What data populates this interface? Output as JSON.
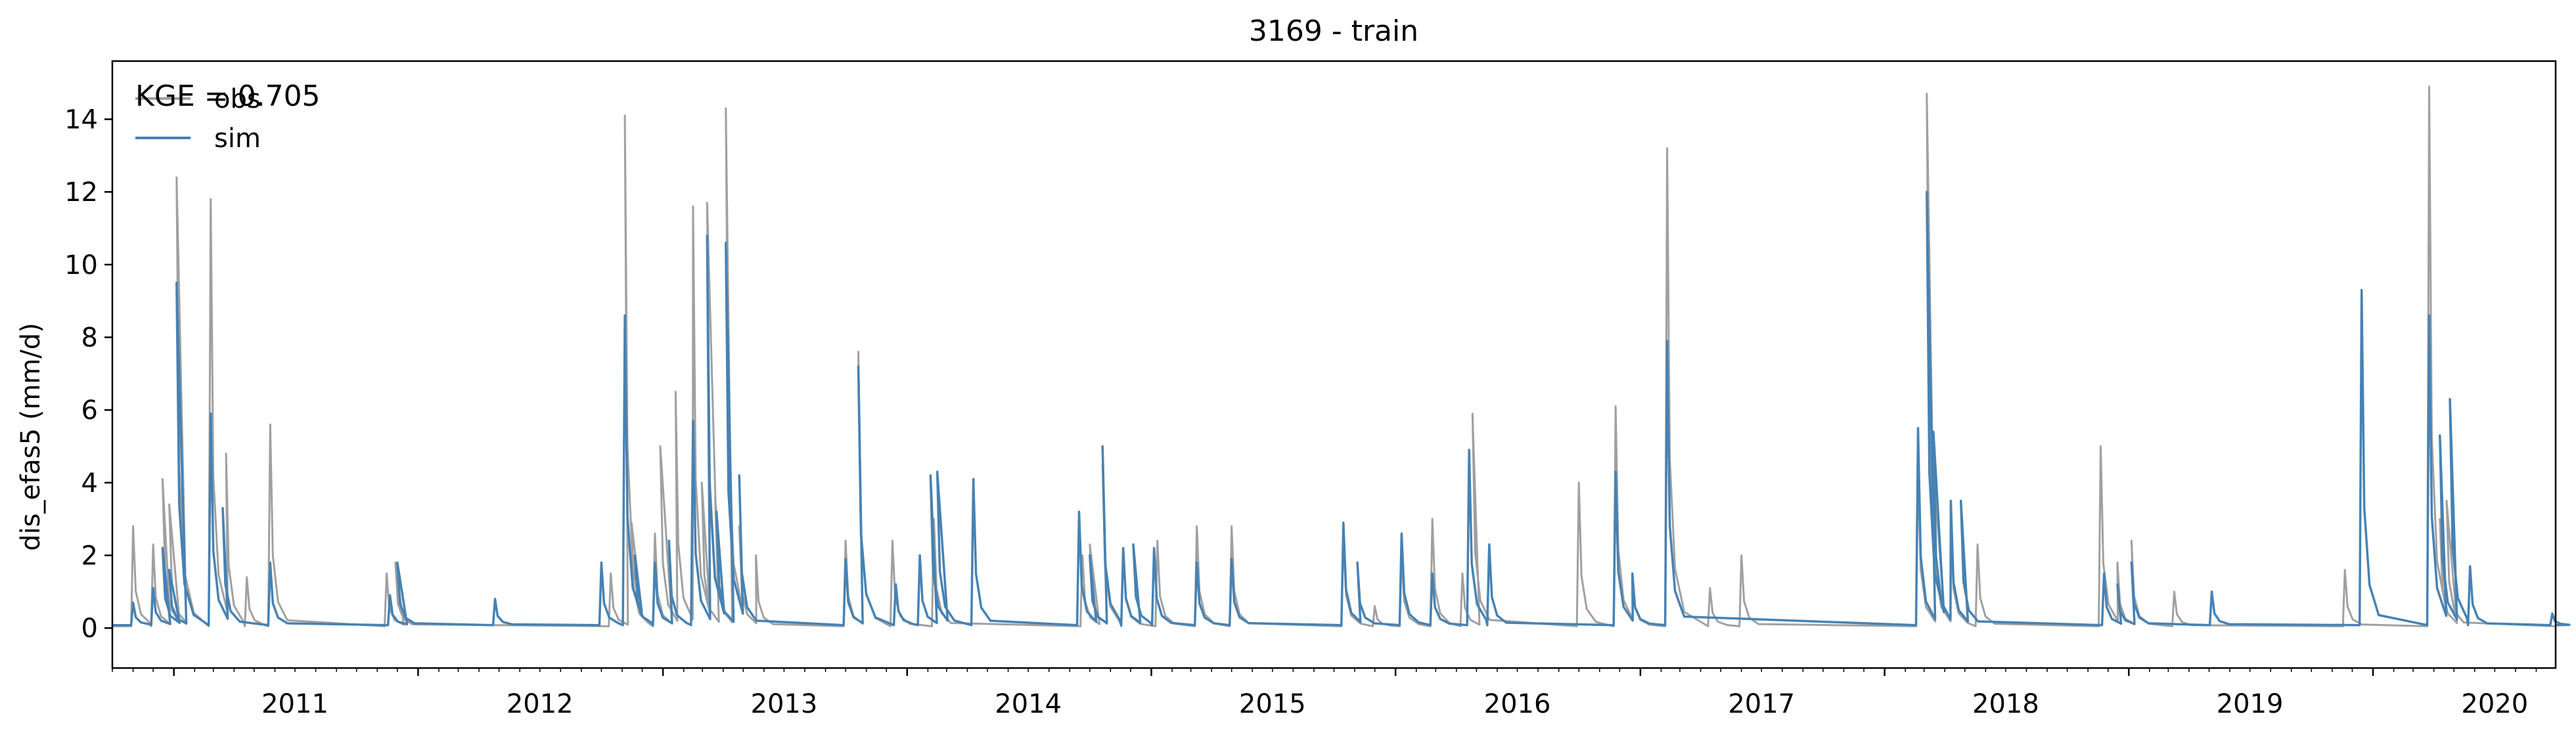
{
  "chart_data": {
    "type": "line",
    "title": "3169 - train",
    "xlabel": "",
    "ylabel": "dis_efas5 (mm/d)",
    "annotation": "KGE = 0.705",
    "xlim": [
      "2010-10-01",
      "2020-09-30"
    ],
    "ylim": [
      -1.1,
      15.6
    ],
    "x_ticks": [
      "2011",
      "2012",
      "2013",
      "2014",
      "2015",
      "2016",
      "2017",
      "2018",
      "2019",
      "2020"
    ],
    "y_ticks": [
      0,
      2,
      4,
      6,
      8,
      10,
      12,
      14
    ],
    "legend": "top-left",
    "grid": false,
    "series": [
      {
        "name": "obs",
        "color": "#a0a0a0",
        "baseline": 0.05,
        "peaks": [
          [
            "2010-11-01",
            2.8
          ],
          [
            "2010-12-01",
            2.3
          ],
          [
            "2010-12-15",
            4.1
          ],
          [
            "2010-12-25",
            3.4
          ],
          [
            "2011-01-05",
            12.4
          ],
          [
            "2011-02-25",
            11.8
          ],
          [
            "2011-03-20",
            4.8
          ],
          [
            "2011-04-20",
            1.4
          ],
          [
            "2011-05-25",
            5.6
          ],
          [
            "2011-11-15",
            1.5
          ],
          [
            "2011-11-28",
            1.8
          ],
          [
            "2012-10-15",
            1.5
          ],
          [
            "2012-11-05",
            14.1
          ],
          [
            "2012-11-15",
            2.9
          ],
          [
            "2012-12-20",
            2.6
          ],
          [
            "2012-12-28",
            5.0
          ],
          [
            "2013-01-20",
            6.5
          ],
          [
            "2013-02-15",
            11.6
          ],
          [
            "2013-02-28",
            4.0
          ],
          [
            "2013-03-08",
            11.7
          ],
          [
            "2013-03-20",
            3.6
          ],
          [
            "2013-04-05",
            14.3
          ],
          [
            "2013-04-25",
            2.8
          ],
          [
            "2013-05-20",
            2.0
          ],
          [
            "2013-10-01",
            2.4
          ],
          [
            "2013-10-20",
            7.6
          ],
          [
            "2013-12-10",
            2.4
          ],
          [
            "2014-02-10",
            3.0
          ],
          [
            "2014-09-20",
            2.0
          ],
          [
            "2014-10-01",
            2.3
          ],
          [
            "2014-10-20",
            4.5
          ],
          [
            "2014-11-20",
            2.2
          ],
          [
            "2015-01-10",
            2.4
          ],
          [
            "2015-03-10",
            2.8
          ],
          [
            "2015-05-01",
            2.8
          ],
          [
            "2015-10-15",
            2.5
          ],
          [
            "2015-12-01",
            0.6
          ],
          [
            "2016-01-10",
            2.0
          ],
          [
            "2016-02-25",
            3.0
          ],
          [
            "2016-04-10",
            1.5
          ],
          [
            "2016-04-25",
            5.9
          ],
          [
            "2016-10-01",
            4.0
          ],
          [
            "2016-11-25",
            6.1
          ],
          [
            "2016-12-20",
            1.5
          ],
          [
            "2017-02-10",
            13.2
          ],
          [
            "2017-04-15",
            1.1
          ],
          [
            "2017-06-01",
            2.0
          ],
          [
            "2018-02-20",
            4.5
          ],
          [
            "2018-03-05",
            14.7
          ],
          [
            "2018-03-15",
            4.5
          ],
          [
            "2018-04-10",
            3.0
          ],
          [
            "2018-05-20",
            2.3
          ],
          [
            "2018-11-20",
            5.0
          ],
          [
            "2018-12-15",
            1.8
          ],
          [
            "2019-01-05",
            2.4
          ],
          [
            "2019-03-10",
            1.0
          ],
          [
            "2019-11-20",
            1.6
          ],
          [
            "2020-03-25",
            14.9
          ],
          [
            "2020-04-10",
            3.0
          ],
          [
            "2020-04-20",
            3.5
          ]
        ]
      },
      {
        "name": "sim",
        "color": "#4682b4",
        "baseline": 0.08,
        "peaks": [
          [
            "2010-11-01",
            0.7
          ],
          [
            "2010-12-01",
            1.1
          ],
          [
            "2010-12-15",
            2.2
          ],
          [
            "2010-12-25",
            1.6
          ],
          [
            "2011-01-05",
            9.5
          ],
          [
            "2011-02-25",
            5.9
          ],
          [
            "2011-03-15",
            3.3
          ],
          [
            "2011-05-25",
            1.8
          ],
          [
            "2011-11-20",
            0.9
          ],
          [
            "2011-12-01",
            1.8
          ],
          [
            "2012-04-25",
            0.8
          ],
          [
            "2012-10-01",
            1.8
          ],
          [
            "2012-11-05",
            8.6
          ],
          [
            "2012-11-20",
            2.0
          ],
          [
            "2012-12-20",
            1.8
          ],
          [
            "2013-01-10",
            2.4
          ],
          [
            "2013-02-15",
            5.7
          ],
          [
            "2013-03-08",
            10.8
          ],
          [
            "2013-03-22",
            3.2
          ],
          [
            "2013-04-05",
            10.6
          ],
          [
            "2013-04-25",
            4.2
          ],
          [
            "2013-10-01",
            1.9
          ],
          [
            "2013-10-20",
            7.2
          ],
          [
            "2013-12-15",
            1.2
          ],
          [
            "2014-01-20",
            2.0
          ],
          [
            "2014-02-05",
            4.2
          ],
          [
            "2014-02-15",
            4.3
          ],
          [
            "2014-04-10",
            4.1
          ],
          [
            "2014-09-15",
            3.2
          ],
          [
            "2014-10-01",
            2.0
          ],
          [
            "2014-10-20",
            5.0
          ],
          [
            "2014-11-20",
            2.2
          ],
          [
            "2014-12-05",
            2.3
          ],
          [
            "2015-01-05",
            2.2
          ],
          [
            "2015-03-10",
            1.8
          ],
          [
            "2015-05-01",
            1.9
          ],
          [
            "2015-10-15",
            2.9
          ],
          [
            "2015-11-05",
            1.8
          ],
          [
            "2016-01-10",
            2.6
          ],
          [
            "2016-02-25",
            1.5
          ],
          [
            "2016-04-20",
            4.9
          ],
          [
            "2016-05-20",
            2.3
          ],
          [
            "2016-11-25",
            4.3
          ],
          [
            "2016-12-20",
            1.5
          ],
          [
            "2017-02-10",
            7.9
          ],
          [
            "2018-02-20",
            5.5
          ],
          [
            "2018-03-05",
            12.0
          ],
          [
            "2018-03-15",
            5.4
          ],
          [
            "2018-04-10",
            3.5
          ],
          [
            "2018-04-25",
            3.5
          ],
          [
            "2018-11-25",
            1.5
          ],
          [
            "2018-12-15",
            1.2
          ],
          [
            "2019-01-05",
            1.8
          ],
          [
            "2019-05-05",
            1.0
          ],
          [
            "2019-12-15",
            9.3
          ],
          [
            "2020-03-25",
            8.6
          ],
          [
            "2020-04-10",
            5.3
          ],
          [
            "2020-04-25",
            6.3
          ],
          [
            "2020-05-25",
            1.7
          ],
          [
            "2020-09-25",
            0.4
          ]
        ]
      }
    ]
  }
}
